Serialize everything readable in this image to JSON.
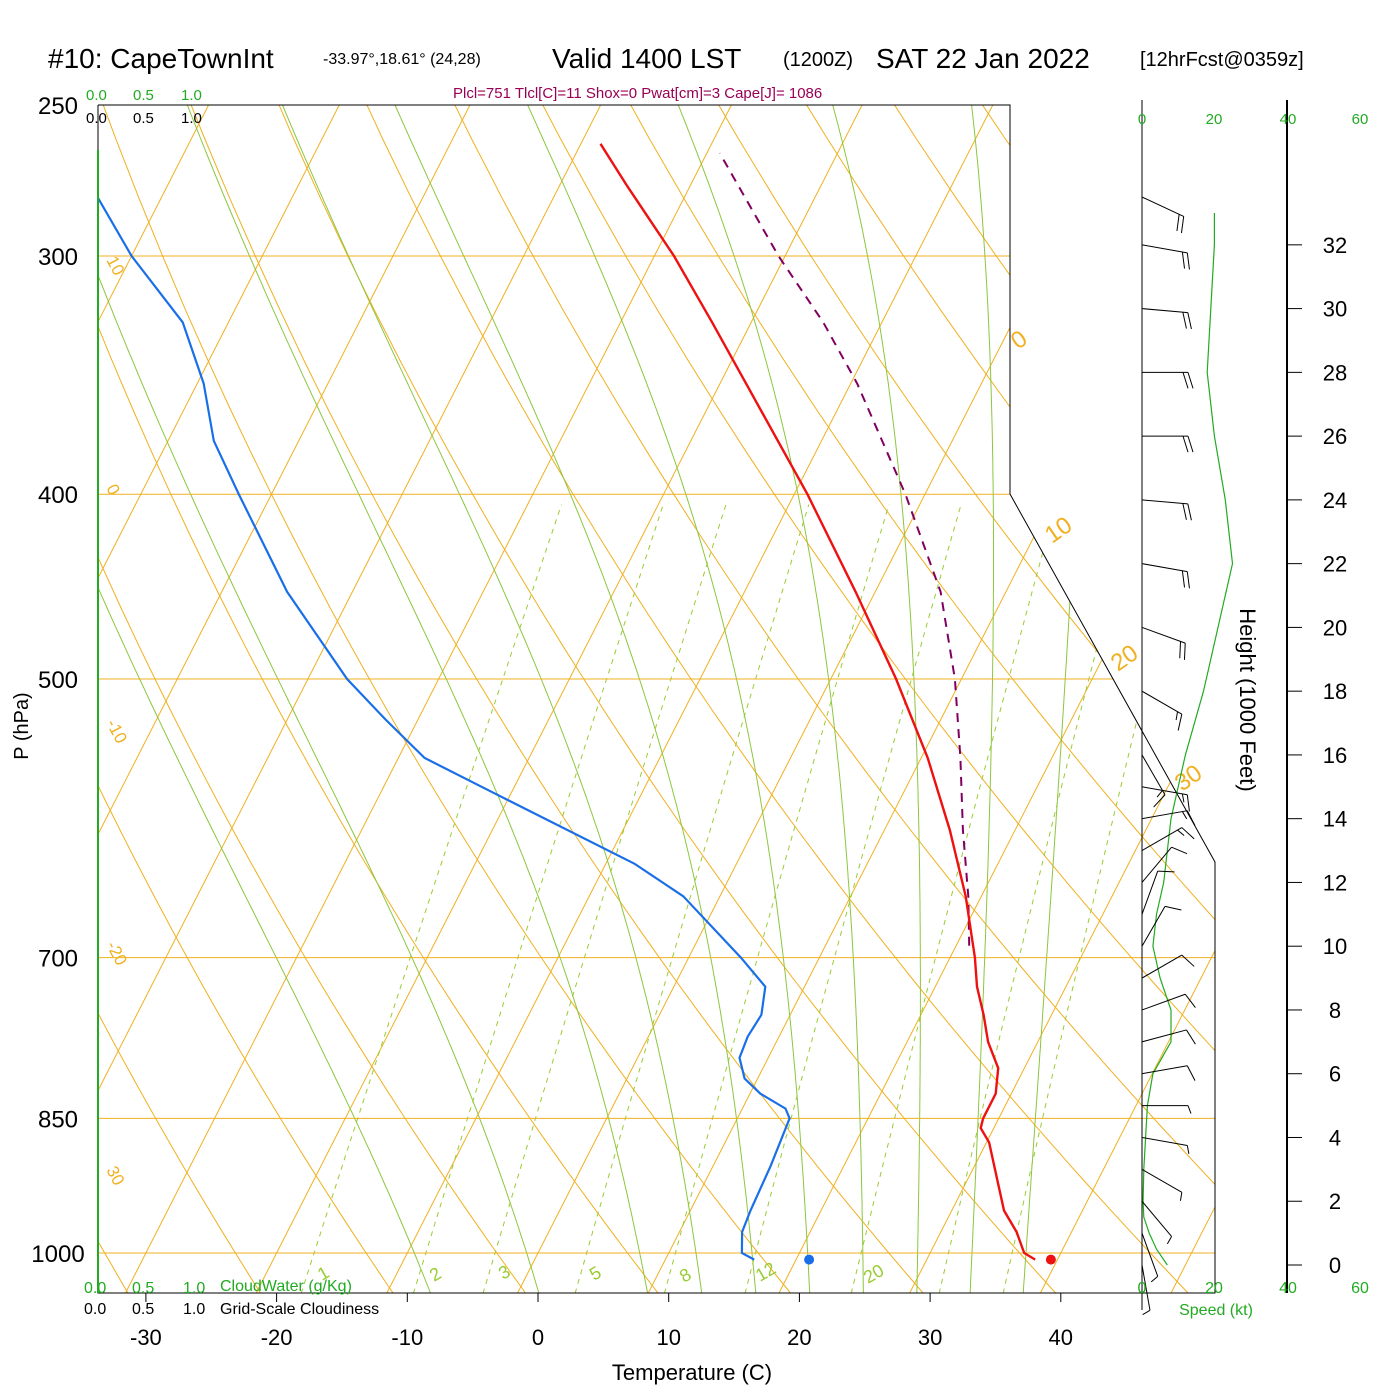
{
  "header": {
    "station": "#10: CapeTownInt",
    "coords": "-33.97°,18.61° (24,28)",
    "valid": "Valid 1400 LST",
    "zulu": "(1200Z)",
    "date": "SAT 22 Jan 2022",
    "forecast": "[12hrFcst@0359z]",
    "indices": "Plcl=751 Tlcl[C]=11 Shox=0 Pwat[cm]=3 Cape[J]= 1086"
  },
  "colors": {
    "temperature": "#ee1111",
    "dewpoint": "#1a6fe8",
    "parcel": "#800060",
    "isotherm": "#f0b020",
    "moist_adiabat": "#8cc63f",
    "mixing_ratio": "#99cc33",
    "wind_speed": "#22aa22",
    "indices": "#990055",
    "green_text": "#22aa22"
  },
  "chart_data": {
    "type": "skew-t",
    "xlabel": "Temperature (C)",
    "ylabel": "P (hPa)",
    "y2label": "Height (1000 Feet)",
    "x_ticks": [
      -30,
      -20,
      -10,
      0,
      10,
      20,
      30,
      40
    ],
    "p_ticks": [
      250,
      300,
      400,
      500,
      700,
      850,
      1000
    ],
    "height_ticks_kft": [
      0,
      2,
      4,
      6,
      8,
      10,
      12,
      14,
      16,
      18,
      20,
      22,
      24,
      26,
      28,
      30,
      32
    ],
    "isotherm_labels": [
      "10",
      "0",
      "-10",
      "-20",
      "30",
      "0",
      "10",
      "20",
      "30"
    ],
    "mixing_ratio_labels": [
      "1",
      "2",
      "3",
      "5",
      "8",
      "12",
      "20"
    ],
    "cloud_scale_labels": [
      "0.0",
      "0.5",
      "1.0"
    ],
    "cloudwater_label": "CloudWater (g/Kg)",
    "cloudiness_label": "Grid-Scale Cloudiness",
    "wind_speed_ticks": [
      "0",
      "20",
      "40",
      "60"
    ],
    "wind_speed_label": "Speed (kt)",
    "temperature_profile": [
      {
        "p": 1008,
        "t": 38.3
      },
      {
        "p": 1000,
        "t": 37.2
      },
      {
        "p": 975,
        "t": 35.8
      },
      {
        "p": 950,
        "t": 34.0
      },
      {
        "p": 900,
        "t": 31.5
      },
      {
        "p": 875,
        "t": 30.2
      },
      {
        "p": 860,
        "t": 29.0
      },
      {
        "p": 850,
        "t": 28.8
      },
      {
        "p": 825,
        "t": 28.8
      },
      {
        "p": 800,
        "t": 28.0
      },
      {
        "p": 775,
        "t": 26.2
      },
      {
        "p": 750,
        "t": 24.8
      },
      {
        "p": 725,
        "t": 23.2
      },
      {
        "p": 700,
        "t": 21.9
      },
      {
        "p": 650,
        "t": 18.8
      },
      {
        "p": 600,
        "t": 15.0
      },
      {
        "p": 550,
        "t": 10.5
      },
      {
        "p": 500,
        "t": 5.0
      },
      {
        "p": 450,
        "t": -1.5
      },
      {
        "p": 400,
        "t": -9.0
      },
      {
        "p": 350,
        "t": -18.0
      },
      {
        "p": 325,
        "t": -23.0
      },
      {
        "p": 300,
        "t": -28.5
      },
      {
        "p": 275,
        "t": -35.0
      },
      {
        "p": 262,
        "t": -38.5
      }
    ],
    "dewpoint_profile": [
      {
        "p": 1008,
        "t": 16.8
      },
      {
        "p": 1000,
        "t": 15.6
      },
      {
        "p": 975,
        "t": 14.8
      },
      {
        "p": 950,
        "t": 14.6
      },
      {
        "p": 900,
        "t": 14.4
      },
      {
        "p": 850,
        "t": 14.0
      },
      {
        "p": 840,
        "t": 13.3
      },
      {
        "p": 825,
        "t": 10.8
      },
      {
        "p": 810,
        "t": 9.0
      },
      {
        "p": 790,
        "t": 7.8
      },
      {
        "p": 770,
        "t": 7.6
      },
      {
        "p": 750,
        "t": 7.8
      },
      {
        "p": 725,
        "t": 7.0
      },
      {
        "p": 700,
        "t": 4.0
      },
      {
        "p": 650,
        "t": -2.8
      },
      {
        "p": 625,
        "t": -7.8
      },
      {
        "p": 575,
        "t": -21.0
      },
      {
        "p": 550,
        "t": -28.0
      },
      {
        "p": 525,
        "t": -32.5
      },
      {
        "p": 500,
        "t": -37.0
      },
      {
        "p": 450,
        "t": -45.0
      },
      {
        "p": 400,
        "t": -52.5
      },
      {
        "p": 375,
        "t": -56.5
      },
      {
        "p": 350,
        "t": -59.5
      },
      {
        "p": 325,
        "t": -63.5
      },
      {
        "p": 300,
        "t": -70.0
      },
      {
        "p": 275,
        "t": -76.0
      },
      {
        "p": 262,
        "t": -79.0
      }
    ],
    "parcel_profile": [
      {
        "p": 690,
        "t": 21.0
      },
      {
        "p": 650,
        "t": 19.0
      },
      {
        "p": 600,
        "t": 16.0
      },
      {
        "p": 550,
        "t": 13.0
      },
      {
        "p": 500,
        "t": 9.5
      },
      {
        "p": 450,
        "t": 5.0
      },
      {
        "p": 400,
        "t": -1.5
      },
      {
        "p": 350,
        "t": -9.5
      },
      {
        "p": 325,
        "t": -14.5
      },
      {
        "p": 300,
        "t": -20.5
      },
      {
        "p": 265,
        "t": -29.0
      }
    ],
    "surface_temperature": 39.5,
    "surface_dewpoint": 21.0,
    "wind_speed_profile": [
      {
        "h": 0,
        "s": 7
      },
      {
        "h": 0.5,
        "s": 4
      },
      {
        "h": 1,
        "s": 2
      },
      {
        "h": 1.5,
        "s": 0.5
      },
      {
        "h": 2,
        "s": 0.3
      },
      {
        "h": 3,
        "s": 0.5
      },
      {
        "h": 4,
        "s": 1
      },
      {
        "h": 5,
        "s": 1.5
      },
      {
        "h": 6,
        "s": 3
      },
      {
        "h": 7,
        "s": 8
      },
      {
        "h": 8,
        "s": 8
      },
      {
        "h": 9,
        "s": 5
      },
      {
        "h": 10,
        "s": 3
      },
      {
        "h": 11,
        "s": 4
      },
      {
        "h": 12,
        "s": 6
      },
      {
        "h": 14,
        "s": 8
      },
      {
        "h": 16,
        "s": 12
      },
      {
        "h": 18,
        "s": 17
      },
      {
        "h": 20,
        "s": 21
      },
      {
        "h": 22,
        "s": 25
      },
      {
        "h": 24,
        "s": 23
      },
      {
        "h": 26,
        "s": 20
      },
      {
        "h": 28,
        "s": 18
      },
      {
        "h": 30,
        "s": 19
      },
      {
        "h": 32,
        "s": 20
      },
      {
        "h": 33,
        "s": 20
      }
    ],
    "wind_barbs": [
      {
        "h": 0,
        "dir": 170,
        "spd": 5
      },
      {
        "h": 1,
        "dir": 160,
        "spd": 5
      },
      {
        "h": 2,
        "dir": 140,
        "spd": 5
      },
      {
        "h": 3,
        "dir": 120,
        "spd": 5
      },
      {
        "h": 4,
        "dir": 100,
        "spd": 5
      },
      {
        "h": 5,
        "dir": 90,
        "spd": 5
      },
      {
        "h": 6,
        "dir": 80,
        "spd": 10
      },
      {
        "h": 7,
        "dir": 75,
        "spd": 10
      },
      {
        "h": 8,
        "dir": 70,
        "spd": 10
      },
      {
        "h": 9,
        "dir": 60,
        "spd": 10
      },
      {
        "h": 10,
        "dir": 30,
        "spd": 10
      },
      {
        "h": 11,
        "dir": 20,
        "spd": 10
      },
      {
        "h": 12,
        "dir": 40,
        "spd": 10
      },
      {
        "h": 13,
        "dir": 60,
        "spd": 15
      },
      {
        "h": 14,
        "dir": 80,
        "spd": 15
      },
      {
        "h": 15,
        "dir": 100,
        "spd": 15
      },
      {
        "h": 16,
        "dir": 150,
        "spd": 15
      },
      {
        "h": 18,
        "dir": 120,
        "spd": 15
      },
      {
        "h": 20,
        "dir": 110,
        "spd": 20
      },
      {
        "h": 22,
        "dir": 100,
        "spd": 20
      },
      {
        "h": 24,
        "dir": 95,
        "spd": 20
      },
      {
        "h": 26,
        "dir": 90,
        "spd": 20
      },
      {
        "h": 28,
        "dir": 90,
        "spd": 20
      },
      {
        "h": 30,
        "dir": 95,
        "spd": 20
      },
      {
        "h": 32,
        "dir": 100,
        "spd": 20
      },
      {
        "h": 33.5,
        "dir": 115,
        "spd": 20
      }
    ]
  }
}
